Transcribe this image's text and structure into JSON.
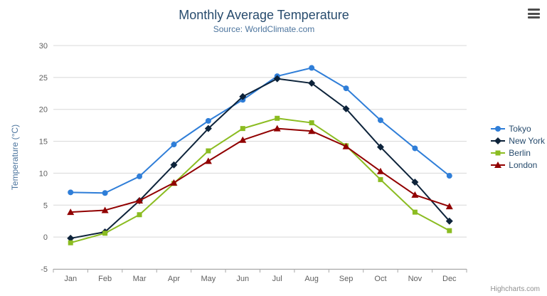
{
  "credits_label": "Highcharts.com",
  "icons": {
    "export_menu": "hamburger-icon"
  },
  "chart_data": {
    "type": "line",
    "title": "Monthly Average Temperature",
    "subtitle": "Source: WorldClimate.com",
    "xlabel": "",
    "ylabel": "Temperature (°C)",
    "categories": [
      "Jan",
      "Feb",
      "Mar",
      "Apr",
      "May",
      "Jun",
      "Jul",
      "Aug",
      "Sep",
      "Oct",
      "Nov",
      "Dec"
    ],
    "series": [
      {
        "name": "Tokyo",
        "color": "#2f7ed8",
        "marker": "circle",
        "values": [
          7.0,
          6.9,
          9.5,
          14.5,
          18.2,
          21.5,
          25.2,
          26.5,
          23.3,
          18.3,
          13.9,
          9.6
        ]
      },
      {
        "name": "New York",
        "color": "#0d233a",
        "marker": "diamond",
        "values": [
          -0.2,
          0.8,
          5.7,
          11.3,
          17.0,
          22.0,
          24.8,
          24.1,
          20.1,
          14.1,
          8.6,
          2.5
        ]
      },
      {
        "name": "Berlin",
        "color": "#8bbc21",
        "marker": "square",
        "values": [
          -0.9,
          0.6,
          3.5,
          8.4,
          13.5,
          17.0,
          18.6,
          17.9,
          14.3,
          9.0,
          3.9,
          1.0
        ]
      },
      {
        "name": "London",
        "color": "#910000",
        "marker": "triangle",
        "values": [
          3.9,
          4.2,
          5.7,
          8.5,
          11.9,
          15.2,
          17.0,
          16.6,
          14.2,
          10.3,
          6.6,
          4.8
        ]
      }
    ],
    "ylim": [
      -5,
      30
    ],
    "yticks": [
      -5,
      0,
      5,
      10,
      15,
      20,
      25,
      30
    ],
    "grid": true,
    "legend_position": "right",
    "colors": {
      "grid": "#d8d8d8",
      "axis": "#a7a7a7",
      "tick_label": "#606060",
      "title": "#274b6d",
      "subtitle": "#4d759e",
      "axis_title": "#4d759e"
    }
  }
}
